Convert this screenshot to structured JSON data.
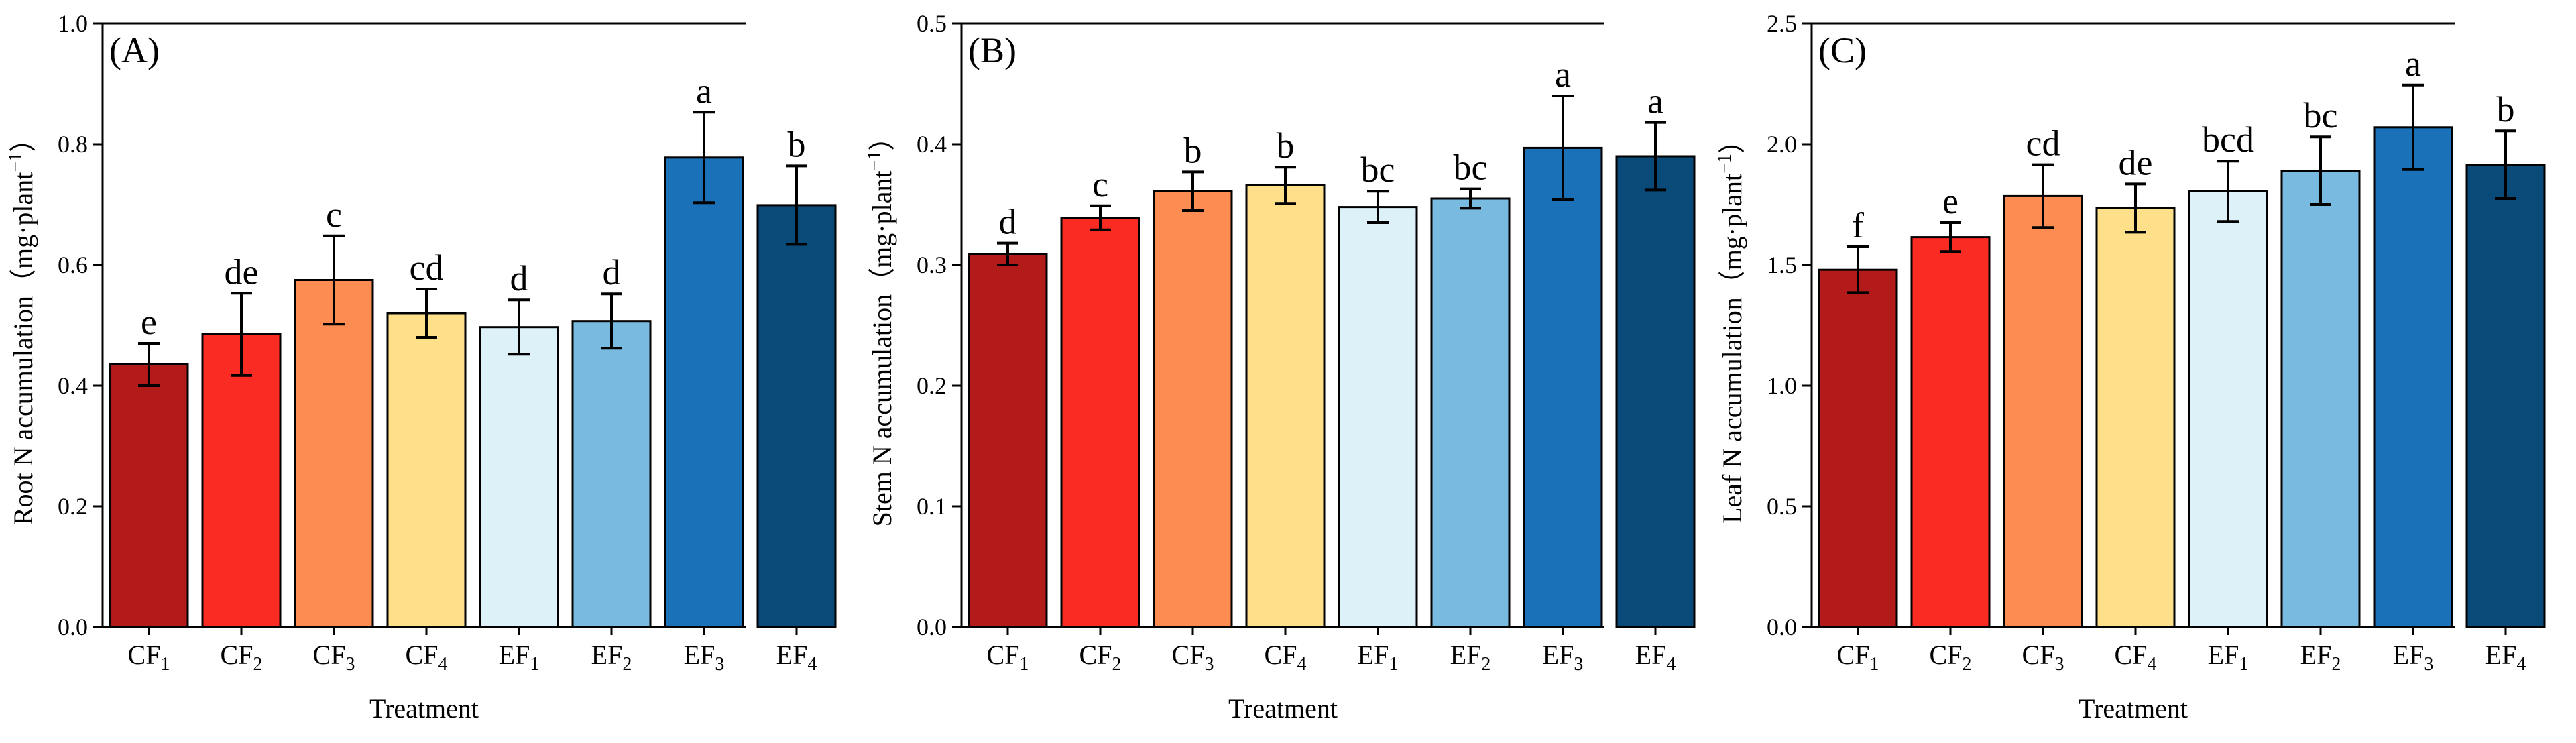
{
  "chart_data": [
    {
      "type": "bar",
      "panel_label": "(A)",
      "ylabel_main": "Root N accumulation（mg·plant",
      "ylabel_sup": "−1",
      "ylabel_close": "）",
      "xlabel": "Treatment",
      "ylim": [
        0,
        1.0
      ],
      "yticks": [
        "0.0",
        "0.2",
        "0.4",
        "0.6",
        "0.8",
        "1.0"
      ],
      "categories": [
        {
          "base": "CF",
          "sub": "1"
        },
        {
          "base": "CF",
          "sub": "2"
        },
        {
          "base": "CF",
          "sub": "3"
        },
        {
          "base": "CF",
          "sub": "4"
        },
        {
          "base": "EF",
          "sub": "1"
        },
        {
          "base": "EF",
          "sub": "2"
        },
        {
          "base": "EF",
          "sub": "3"
        },
        {
          "base": "EF",
          "sub": "4"
        }
      ],
      "values": [
        0.435,
        0.485,
        0.575,
        0.52,
        0.497,
        0.507,
        0.778,
        0.699
      ],
      "errors": [
        0.035,
        0.068,
        0.073,
        0.04,
        0.045,
        0.045,
        0.075,
        0.065
      ],
      "sig_letters": [
        "e",
        "de",
        "c",
        "cd",
        "d",
        "d",
        "a",
        "b"
      ]
    },
    {
      "type": "bar",
      "panel_label": "(B)",
      "ylabel_main": "Stem N accumulation（mg·plant",
      "ylabel_sup": "−1",
      "ylabel_close": "）",
      "xlabel": "Treatment",
      "ylim": [
        0,
        0.5
      ],
      "yticks": [
        "0.0",
        "0.1",
        "0.2",
        "0.3",
        "0.4",
        "0.5"
      ],
      "categories": [
        {
          "base": "CF",
          "sub": "1"
        },
        {
          "base": "CF",
          "sub": "2"
        },
        {
          "base": "CF",
          "sub": "3"
        },
        {
          "base": "CF",
          "sub": "4"
        },
        {
          "base": "EF",
          "sub": "1"
        },
        {
          "base": "EF",
          "sub": "2"
        },
        {
          "base": "EF",
          "sub": "3"
        },
        {
          "base": "EF",
          "sub": "4"
        }
      ],
      "values": [
        0.309,
        0.339,
        0.361,
        0.366,
        0.348,
        0.355,
        0.397,
        0.39
      ],
      "errors": [
        0.009,
        0.01,
        0.016,
        0.015,
        0.013,
        0.008,
        0.043,
        0.028
      ],
      "sig_letters": [
        "d",
        "c",
        "b",
        "b",
        "bc",
        "bc",
        "a",
        "a"
      ]
    },
    {
      "type": "bar",
      "panel_label": "(C)",
      "ylabel_main": "Leaf N accumulation（mg·plant",
      "ylabel_sup": "−1",
      "ylabel_close": "）",
      "xlabel": "Treatment",
      "ylim": [
        0,
        2.5
      ],
      "yticks": [
        "0.0",
        "0.5",
        "1.0",
        "1.5",
        "2.0",
        "2.5"
      ],
      "categories": [
        {
          "base": "CF",
          "sub": "1"
        },
        {
          "base": "CF",
          "sub": "2"
        },
        {
          "base": "CF",
          "sub": "3"
        },
        {
          "base": "CF",
          "sub": "4"
        },
        {
          "base": "EF",
          "sub": "1"
        },
        {
          "base": "EF",
          "sub": "2"
        },
        {
          "base": "EF",
          "sub": "3"
        },
        {
          "base": "EF",
          "sub": "4"
        }
      ],
      "values": [
        1.48,
        1.615,
        1.785,
        1.735,
        1.805,
        1.89,
        2.07,
        1.915
      ],
      "errors": [
        0.095,
        0.06,
        0.13,
        0.1,
        0.125,
        0.14,
        0.175,
        0.14
      ],
      "sig_letters": [
        "f",
        "e",
        "cd",
        "de",
        "bcd",
        "bc",
        "a",
        "b"
      ]
    }
  ],
  "bar_colors": [
    "#b31b1b",
    "#f92b22",
    "#fd8c52",
    "#fedf8a",
    "#dcf1f8",
    "#79bbe0",
    "#1a71b8",
    "#0a4a78"
  ]
}
